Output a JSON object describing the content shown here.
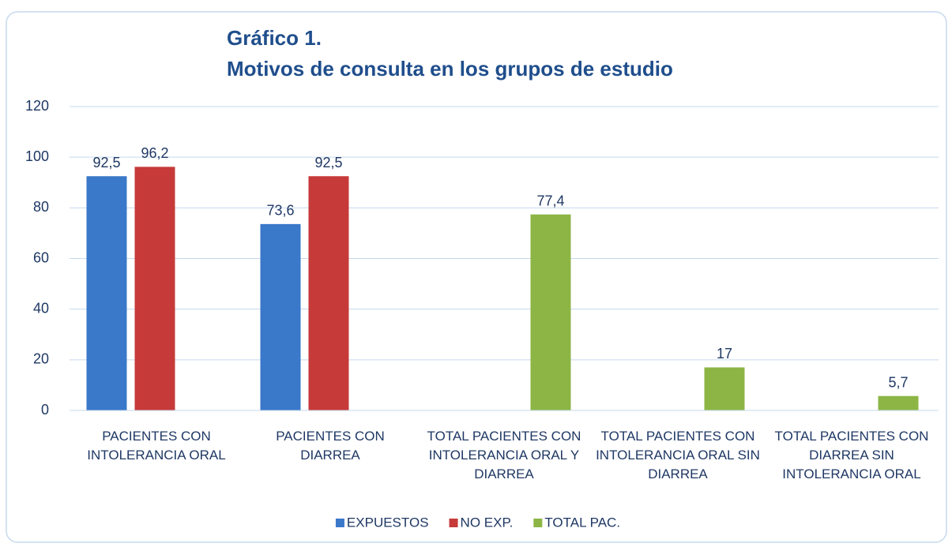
{
  "chart_data": {
    "type": "bar",
    "title": "Gráfico 1.",
    "subtitle": "Motivos de consulta en los grupos de estudio",
    "categories": [
      "PACIENTES CON INTOLERANCIA ORAL",
      "PACIENTES CON DIARREA",
      "TOTAL PACIENTES CON INTOLERANCIA ORAL Y DIARREA",
      "TOTAL PACIENTES CON INTOLERANCIA ORAL SIN DIARREA",
      "TOTAL PACIENTES CON DIARREA SIN INTOLERANCIA ORAL"
    ],
    "series": [
      {
        "name": "EXPUESTOS",
        "color": "#3a78c9",
        "values": [
          92.5,
          73.6,
          null,
          null,
          null
        ],
        "value_labels": [
          "92,5",
          "73,6",
          null,
          null,
          null
        ]
      },
      {
        "name": "NO EXP.",
        "color": "#c63a39",
        "values": [
          96.2,
          92.5,
          null,
          null,
          null
        ],
        "value_labels": [
          "96,2",
          "92,5",
          null,
          null,
          null
        ]
      },
      {
        "name": "TOTAL PAC.",
        "color": "#8cb545",
        "values": [
          null,
          null,
          77.4,
          17,
          5.7
        ],
        "value_labels": [
          null,
          null,
          "77,4",
          "17",
          "5,7"
        ]
      }
    ],
    "ylim": [
      0,
      120
    ],
    "yticks": [
      0,
      20,
      40,
      60,
      80,
      100,
      120
    ],
    "grid": true,
    "legend": "bottom"
  }
}
